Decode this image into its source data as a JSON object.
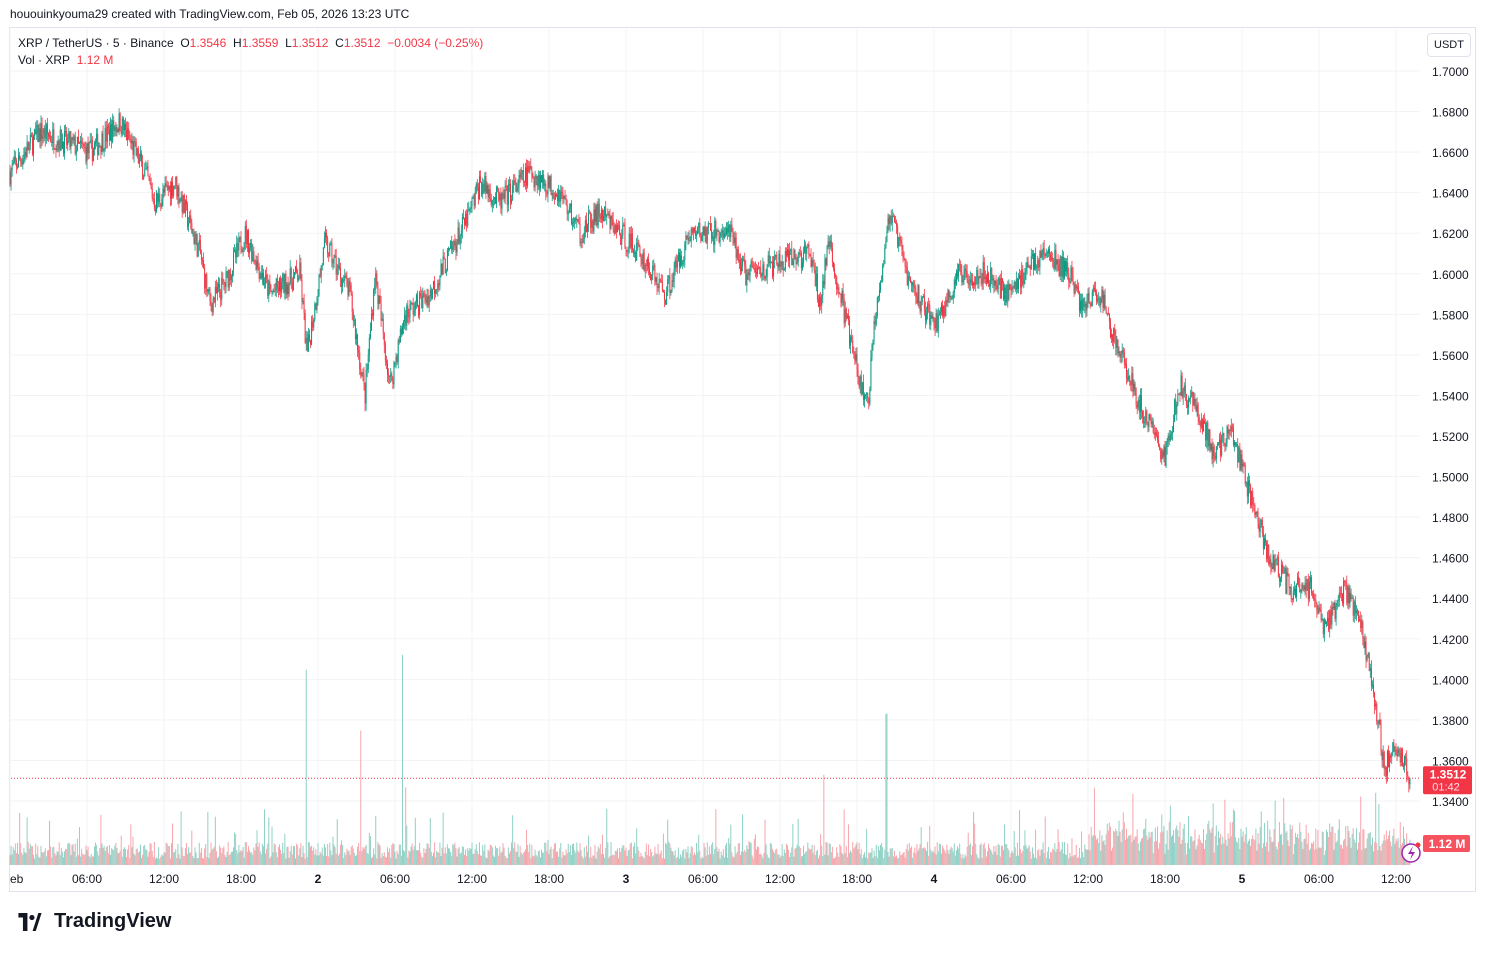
{
  "credit": "hououinkyouma29 created with TradingView.com, Feb 05, 2026 13:23 UTC",
  "legend": {
    "symbol": "XRP / TetherUS · 5 · Binance",
    "o_label": "O",
    "o": "1.3546",
    "h_label": "H",
    "h": "1.3559",
    "l_label": "L",
    "l": "1.3512",
    "c_label": "C",
    "c": "1.3512",
    "change": "−0.0034 (−0.25%)",
    "vol_label": "Vol · XRP",
    "vol": "1.12 M"
  },
  "currency_button": "USDT",
  "last_price": "1.3512",
  "countdown": "01:42",
  "last_volume": "1.12 M",
  "logo": "TradingView",
  "colors": {
    "up": "#089981",
    "down": "#f23645",
    "vol_up": "#8fd1c5",
    "vol_down": "#f7a6ac"
  },
  "chart_data": {
    "type": "candlestick",
    "title": "XRP / TetherUS · 5 · Binance",
    "ylim": [
      1.34,
      1.7
    ],
    "y_ticks": [
      "1.7000",
      "1.6800",
      "1.6600",
      "1.6400",
      "1.6200",
      "1.6000",
      "1.5800",
      "1.5600",
      "1.5400",
      "1.5200",
      "1.5000",
      "1.4800",
      "1.4600",
      "1.4400",
      "1.4200",
      "1.4000",
      "1.3800",
      "1.3600",
      "1.3400"
    ],
    "x_ticks": [
      {
        "h": 0,
        "label": "eb"
      },
      {
        "h": 6,
        "label": "06:00"
      },
      {
        "h": 12,
        "label": "12:00"
      },
      {
        "h": 18,
        "label": "18:00"
      },
      {
        "h": 24,
        "label": "2"
      },
      {
        "h": 30,
        "label": "06:00"
      },
      {
        "h": 36,
        "label": "12:00"
      },
      {
        "h": 42,
        "label": "18:00"
      },
      {
        "h": 48,
        "label": "3"
      },
      {
        "h": 54,
        "label": "06:00"
      },
      {
        "h": 60,
        "label": "12:00"
      },
      {
        "h": 66,
        "label": "18:00"
      },
      {
        "h": 72,
        "label": "4"
      },
      {
        "h": 78,
        "label": "06:00"
      },
      {
        "h": 84,
        "label": "12:00"
      },
      {
        "h": 90,
        "label": "18:00"
      },
      {
        "h": 96,
        "label": "5"
      },
      {
        "h": 102,
        "label": "06:00"
      },
      {
        "h": 108,
        "label": "12:00"
      }
    ],
    "x_unit": "hours since Feb 1 00:00 UTC",
    "price_path": [
      [
        0,
        1.65
      ],
      [
        2.34,
        1.67
      ],
      [
        6.23,
        1.66
      ],
      [
        8.57,
        1.675
      ],
      [
        10.52,
        1.65
      ],
      [
        11.3,
        1.635
      ],
      [
        12.86,
        1.645
      ],
      [
        14.81,
        1.61
      ],
      [
        15.58,
        1.585
      ],
      [
        16.75,
        1.595
      ],
      [
        18.31,
        1.62
      ],
      [
        20.26,
        1.59
      ],
      [
        22.6,
        1.6
      ],
      [
        23.14,
        1.56
      ],
      [
        24.55,
        1.615
      ],
      [
        26.49,
        1.59
      ],
      [
        27.66,
        1.54
      ],
      [
        28.44,
        1.6
      ],
      [
        29.61,
        1.545
      ],
      [
        30.78,
        1.58
      ],
      [
        32.73,
        1.59
      ],
      [
        34.29,
        1.61
      ],
      [
        35.84,
        1.63
      ],
      [
        36.62,
        1.645
      ],
      [
        38.18,
        1.635
      ],
      [
        40.52,
        1.65
      ],
      [
        42.86,
        1.64
      ],
      [
        44.42,
        1.62
      ],
      [
        45.97,
        1.63
      ],
      [
        49.09,
        1.61
      ],
      [
        51.04,
        1.59
      ],
      [
        52.99,
        1.62
      ],
      [
        56.1,
        1.62
      ],
      [
        57.27,
        1.6
      ],
      [
        60,
        1.605
      ],
      [
        62.34,
        1.61
      ],
      [
        63.12,
        1.585
      ],
      [
        63.74,
        1.615
      ],
      [
        65.06,
        1.58
      ],
      [
        66.23,
        1.545
      ],
      [
        66.86,
        1.535
      ],
      [
        67.4,
        1.58
      ],
      [
        68.57,
        1.63
      ],
      [
        70.13,
        1.595
      ],
      [
        72.08,
        1.575
      ],
      [
        74.03,
        1.6
      ],
      [
        75.97,
        1.6
      ],
      [
        77.92,
        1.59
      ],
      [
        79.48,
        1.605
      ],
      [
        80.65,
        1.61
      ],
      [
        82.6,
        1.6
      ],
      [
        83.38,
        1.585
      ],
      [
        84.94,
        1.59
      ],
      [
        86.49,
        1.56
      ],
      [
        88.05,
        1.535
      ],
      [
        90,
        1.51
      ],
      [
        91.17,
        1.545
      ],
      [
        92.73,
        1.53
      ],
      [
        93.9,
        1.51
      ],
      [
        95.06,
        1.525
      ],
      [
        96.62,
        1.49
      ],
      [
        98.18,
        1.46
      ],
      [
        99.74,
        1.445
      ],
      [
        101.3,
        1.445
      ],
      [
        102.47,
        1.425
      ],
      [
        104.03,
        1.445
      ],
      [
        105.19,
        1.43
      ],
      [
        106.36,
        1.39
      ],
      [
        107.14,
        1.355
      ],
      [
        107.92,
        1.37
      ],
      [
        109.1,
        1.3512
      ]
    ],
    "volume_spikes_relative": [
      [
        23.1,
        0.93
      ],
      [
        27.3,
        0.64
      ],
      [
        30.6,
        1.0
      ],
      [
        30.8,
        0.37
      ],
      [
        63.4,
        0.43
      ],
      [
        68.3,
        0.72
      ]
    ],
    "last_price": 1.3512
  }
}
